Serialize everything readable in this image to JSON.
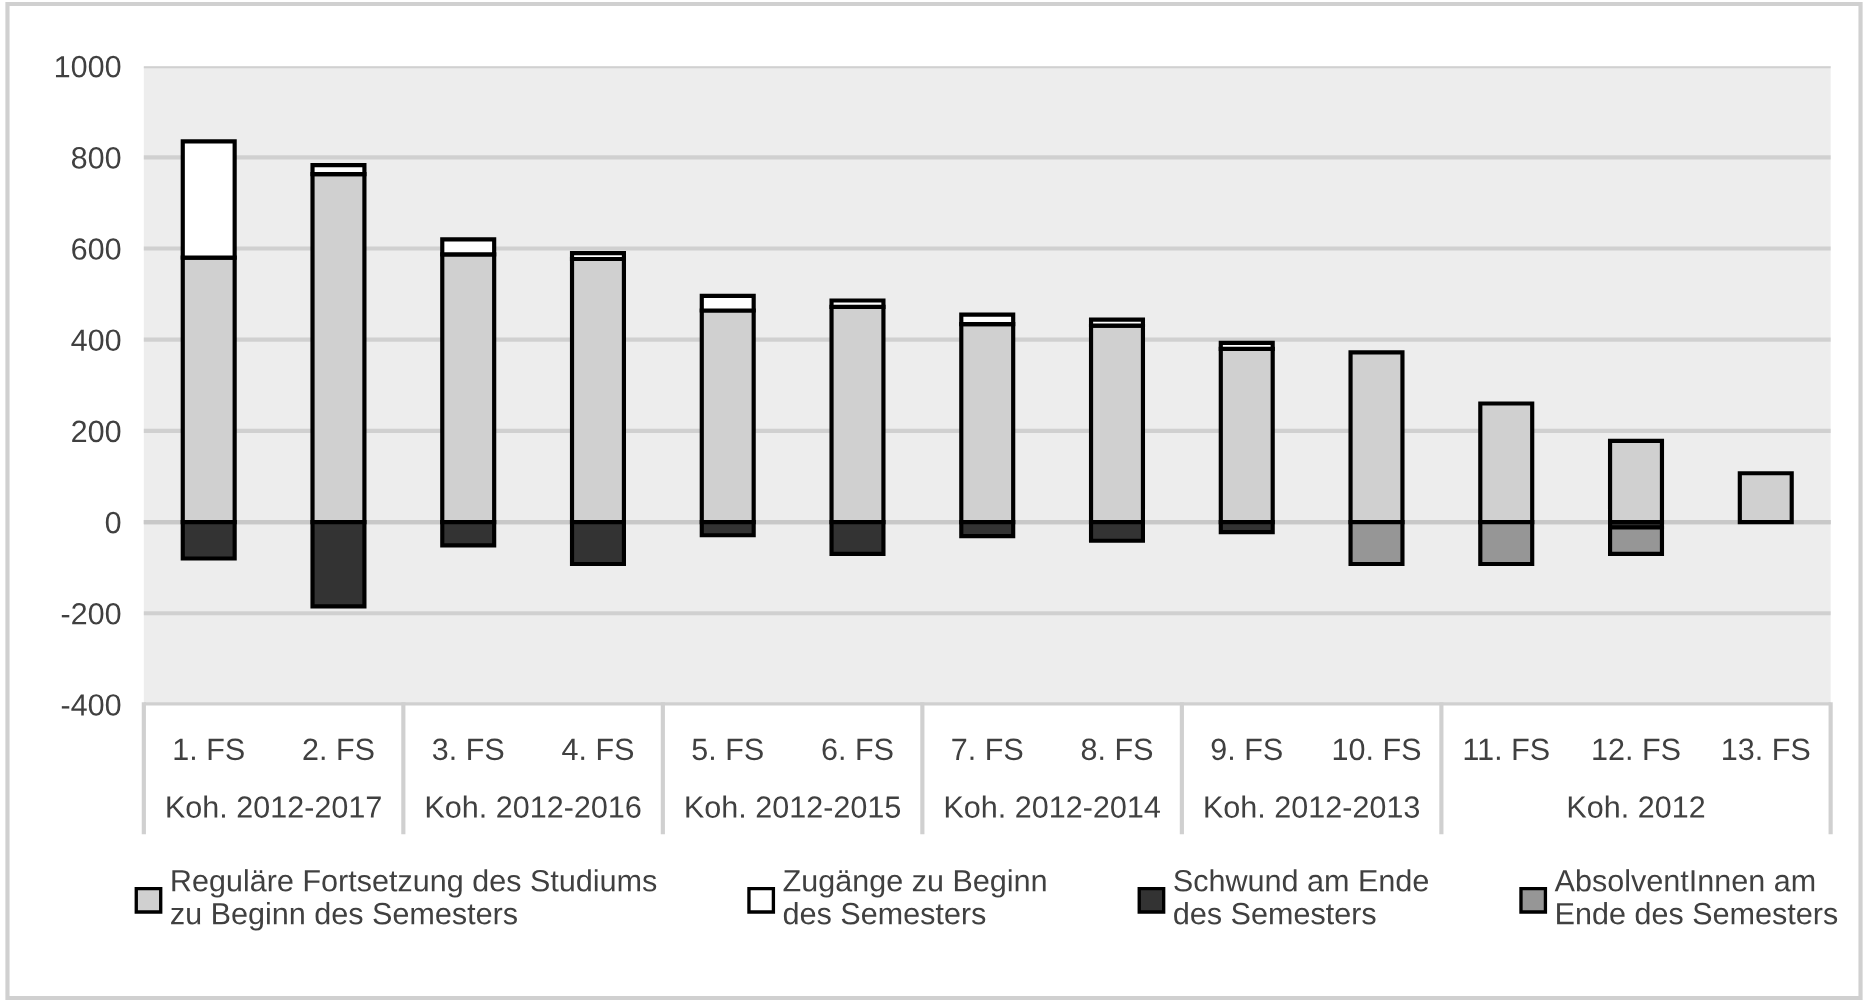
{
  "chart_data": {
    "type": "bar",
    "stacked": true,
    "categories": [
      "1. FS",
      "2. FS",
      "3. FS",
      "4. FS",
      "5. FS",
      "6. FS",
      "7. FS",
      "8. FS",
      "9. FS",
      "10. FS",
      "11. FS",
      "12. FS",
      "13. FS"
    ],
    "series": [
      {
        "name": "Reguläre Fortsetzung des Studiums\nzu Beginn des Semesters",
        "color": "#d0d0d0",
        "values": [
          580,
          763,
          587,
          577,
          464,
          472,
          434,
          431,
          380,
          372,
          260,
          178,
          107
        ]
      },
      {
        "name": "Zugänge zu Beginn\ndes Semesters",
        "color": "#ffffff",
        "values": [
          255,
          20,
          33,
          13,
          32,
          14,
          21,
          13,
          13,
          null,
          null,
          null,
          null
        ]
      },
      {
        "name": "Schwund am Ende\ndes Semesters",
        "color": "#333333",
        "values": [
          -80,
          -185,
          -51,
          -92,
          -29,
          -70,
          -31,
          -41,
          -22,
          null,
          null,
          -12,
          null
        ]
      },
      {
        "name": "AbsolventInnen am\nEnde des Semesters",
        "color": "#969696",
        "values": [
          null,
          null,
          null,
          null,
          null,
          null,
          null,
          null,
          null,
          -92,
          -92,
          -58,
          null
        ]
      }
    ],
    "ylim": [
      -400,
      1000
    ],
    "yticks": [
      -400,
      -200,
      0,
      200,
      400,
      600,
      800,
      1000
    ],
    "grid": "y",
    "legend": "bottom",
    "annotations": [
      "Koh. 2012-2017",
      "Koh. 2012-2016",
      "Koh. 2012-2015",
      "Koh. 2012-2014",
      "Koh. 2012-2013",
      "Koh. 2012"
    ]
  }
}
